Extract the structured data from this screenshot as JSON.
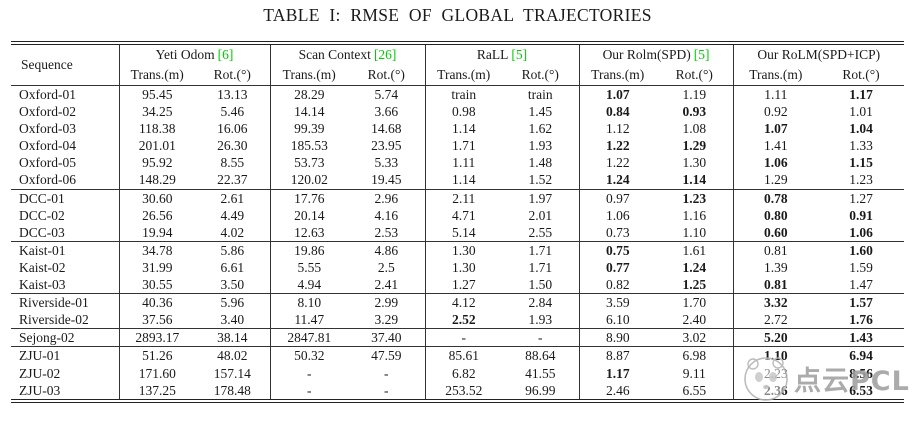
{
  "title": "TABLE I: RMSE OF GLOBAL TRAJECTORIES",
  "colors": {
    "citation_green": "#00CC00",
    "text": "#1a1a1a",
    "watermark_gray": "#a0a0a0"
  },
  "table": {
    "sequence_header": "Sequence",
    "groups": [
      {
        "name": "Yeti Odom",
        "cite": "[6]"
      },
      {
        "name": "Scan Context",
        "cite": "[26]"
      },
      {
        "name": "RaLL",
        "cite": "[5]"
      },
      {
        "name": "Our Rolm(SPD)",
        "cite": "[5]"
      },
      {
        "name": "Our RoLM(SPD+ICP)",
        "cite": ""
      }
    ],
    "subheaders": [
      "Trans.(m)",
      "Rot.(°)"
    ],
    "blocks": [
      {
        "rows": [
          {
            "seq": "Oxford-01",
            "cells": [
              "95.45",
              "13.13",
              "28.29",
              "5.74",
              "train",
              "train",
              "1.07",
              "1.19",
              "1.11",
              "1.17"
            ],
            "bold": [
              6,
              9
            ]
          },
          {
            "seq": "Oxford-02",
            "cells": [
              "34.25",
              "5.46",
              "14.14",
              "3.66",
              "0.98",
              "1.45",
              "0.84",
              "0.93",
              "0.92",
              "1.01"
            ],
            "bold": [
              6,
              7
            ]
          },
          {
            "seq": "Oxford-03",
            "cells": [
              "118.38",
              "16.06",
              "99.39",
              "14.68",
              "1.14",
              "1.62",
              "1.12",
              "1.08",
              "1.07",
              "1.04"
            ],
            "bold": [
              8,
              9
            ]
          },
          {
            "seq": "Oxford-04",
            "cells": [
              "201.01",
              "26.30",
              "185.53",
              "23.95",
              "1.71",
              "1.93",
              "1.22",
              "1.29",
              "1.41",
              "1.33"
            ],
            "bold": [
              6,
              7
            ]
          },
          {
            "seq": "Oxford-05",
            "cells": [
              "95.92",
              "8.55",
              "53.73",
              "5.33",
              "1.11",
              "1.48",
              "1.22",
              "1.30",
              "1.06",
              "1.15"
            ],
            "bold": [
              8,
              9
            ]
          },
          {
            "seq": "Oxford-06",
            "cells": [
              "148.29",
              "22.37",
              "120.02",
              "19.45",
              "1.14",
              "1.52",
              "1.24",
              "1.14",
              "1.29",
              "1.23"
            ],
            "bold": [
              6,
              7
            ]
          }
        ]
      },
      {
        "rows": [
          {
            "seq": "DCC-01",
            "cells": [
              "30.60",
              "2.61",
              "17.76",
              "2.96",
              "2.11",
              "1.97",
              "0.97",
              "1.23",
              "0.78",
              "1.27"
            ],
            "bold": [
              7,
              8
            ]
          },
          {
            "seq": "DCC-02",
            "cells": [
              "26.56",
              "4.49",
              "20.14",
              "4.16",
              "4.71",
              "2.01",
              "1.06",
              "1.16",
              "0.80",
              "0.91"
            ],
            "bold": [
              8,
              9
            ]
          },
          {
            "seq": "DCC-03",
            "cells": [
              "19.94",
              "4.02",
              "12.63",
              "2.53",
              "5.14",
              "2.55",
              "0.73",
              "1.10",
              "0.60",
              "1.06"
            ],
            "bold": [
              8,
              9
            ]
          }
        ]
      },
      {
        "rows": [
          {
            "seq": "Kaist-01",
            "cells": [
              "34.78",
              "5.86",
              "19.86",
              "4.86",
              "1.30",
              "1.71",
              "0.75",
              "1.61",
              "0.81",
              "1.60"
            ],
            "bold": [
              6,
              9
            ]
          },
          {
            "seq": "Kaist-02",
            "cells": [
              "31.99",
              "6.61",
              "5.55",
              "2.5",
              "1.30",
              "1.71",
              "0.77",
              "1.24",
              "1.39",
              "1.59"
            ],
            "bold": [
              6,
              7
            ]
          },
          {
            "seq": "Kaist-03",
            "cells": [
              "30.55",
              "3.50",
              "4.94",
              "2.41",
              "1.27",
              "1.50",
              "0.82",
              "1.25",
              "0.81",
              "1.47"
            ],
            "bold": [
              7,
              8
            ]
          }
        ]
      },
      {
        "rows": [
          {
            "seq": "Riverside-01",
            "cells": [
              "40.36",
              "5.96",
              "8.10",
              "2.99",
              "4.12",
              "2.84",
              "3.59",
              "1.70",
              "3.32",
              "1.57"
            ],
            "bold": [
              8,
              9
            ]
          },
          {
            "seq": "Riverside-02",
            "cells": [
              "37.56",
              "3.40",
              "11.47",
              "3.29",
              "2.52",
              "1.93",
              "6.10",
              "2.40",
              "2.72",
              "1.76"
            ],
            "bold": [
              4,
              9
            ]
          }
        ]
      },
      {
        "rows": [
          {
            "seq": "Sejong-02",
            "cells": [
              "2893.17",
              "38.14",
              "2847.81",
              "37.40",
              "-",
              "-",
              "8.90",
              "3.02",
              "5.20",
              "1.43"
            ],
            "bold": [
              8,
              9
            ]
          }
        ]
      },
      {
        "rows": [
          {
            "seq": "ZJU-01",
            "cells": [
              "51.26",
              "48.02",
              "50.32",
              "47.59",
              "85.61",
              "88.64",
              "8.87",
              "6.98",
              "1.10",
              "6.94"
            ],
            "bold": [
              8,
              9
            ]
          },
          {
            "seq": "ZJU-02",
            "cells": [
              "171.60",
              "157.14",
              "-",
              "-",
              "6.82",
              "41.55",
              "1.17",
              "9.11",
              "2.23",
              "8.56"
            ],
            "bold": [
              6,
              9
            ]
          },
          {
            "seq": "ZJU-03",
            "cells": [
              "137.25",
              "178.48",
              "-",
              "-",
              "253.52",
              "96.99",
              "2.46",
              "6.55",
              "2.36",
              "6.53"
            ],
            "bold": [
              8,
              9
            ]
          }
        ]
      }
    ]
  },
  "watermark": {
    "text": "点云PCL",
    "logo": "panda-sketch-logo"
  }
}
